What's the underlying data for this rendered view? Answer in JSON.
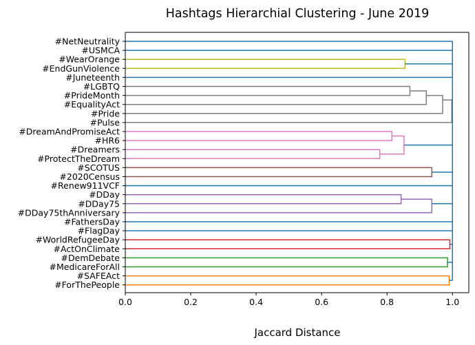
{
  "chart_data": {
    "type": "dendrogram",
    "title": "Hashtags Hierarchial Clustering - June 2019",
    "xlabel": "Jaccard Distance",
    "ylabel": "",
    "xlim": [
      0,
      1.05
    ],
    "xticks": [
      "0.0",
      "0.2",
      "0.4",
      "0.6",
      "0.8",
      "1.0"
    ],
    "xtick_values": [
      0,
      0.2,
      0.4,
      0.6,
      0.8,
      1.0
    ],
    "orientation": "left",
    "grid": false,
    "above_threshold_color": "#1f77b4",
    "leaves": [
      "#NetNeutrality",
      "#USMCA",
      "#WearOrange",
      "#EndGunViolence",
      "#Juneteenth",
      "#LGBTQ",
      "#PrideMonth",
      "#EqualityAct",
      "#Pride",
      "#Pulse",
      "#DreamAndPromiseAct",
      "#HR6",
      "#Dreamers",
      "#ProtectTheDream",
      "#SCOTUS",
      "#2020Census",
      "#Renew911VCF",
      "#DDay",
      "#DDay75",
      "#DDay75thAnniversary",
      "#FathersDay",
      "#FlagDay",
      "#WorldRefugeeDay",
      "#ActOnClimate",
      "#DemDebate",
      "#MedicareForAll",
      "#SAFEAct",
      "#ForThePeople"
    ],
    "clusters": [
      {
        "members": [
          "#WearOrange",
          "#EndGunViolence"
        ],
        "height": 0.855,
        "color": "#bcbd22"
      },
      {
        "members": [
          "#LGBTQ",
          "#PrideMonth"
        ],
        "height": 0.87,
        "color": "#7f7f7f"
      },
      {
        "members": [
          "#LGBTQ",
          "#PrideMonth",
          "#EqualityAct"
        ],
        "height": 0.92,
        "color": "#7f7f7f"
      },
      {
        "members": [
          "#LGBTQ",
          "#PrideMonth",
          "#EqualityAct",
          "#Pride"
        ],
        "height": 0.97,
        "color": "#7f7f7f"
      },
      {
        "members": [
          "#LGBTQ",
          "#PrideMonth",
          "#EqualityAct",
          "#Pride",
          "#Pulse"
        ],
        "height": 0.998,
        "color": "#7f7f7f"
      },
      {
        "members": [
          "#DreamAndPromiseAct",
          "#HR6"
        ],
        "height": 0.815,
        "color": "#e377c2"
      },
      {
        "members": [
          "#Dreamers",
          "#ProtectTheDream"
        ],
        "height": 0.778,
        "color": "#e377c2"
      },
      {
        "members": [
          "#DreamAndPromiseAct",
          "#HR6",
          "#Dreamers",
          "#ProtectTheDream"
        ],
        "height": 0.852,
        "color": "#e377c2"
      },
      {
        "members": [
          "#SCOTUS",
          "#2020Census"
        ],
        "height": 0.937,
        "color": "#8c564b"
      },
      {
        "members": [
          "#DDay",
          "#DDay75"
        ],
        "height": 0.843,
        "color": "#9467bd"
      },
      {
        "members": [
          "#DDay",
          "#DDay75",
          "#DDay75thAnniversary"
        ],
        "height": 0.937,
        "color": "#9467bd"
      },
      {
        "members": [
          "#WorldRefugeeDay",
          "#ActOnClimate"
        ],
        "height": 0.992,
        "color": "#d62728"
      },
      {
        "members": [
          "#DemDebate",
          "#MedicareForAll"
        ],
        "height": 0.985,
        "color": "#2ca02c"
      },
      {
        "members": [
          "#SAFEAct",
          "#ForThePeople"
        ],
        "height": 0.99,
        "color": "#ff7f0e"
      }
    ],
    "root_height": 1.0
  }
}
